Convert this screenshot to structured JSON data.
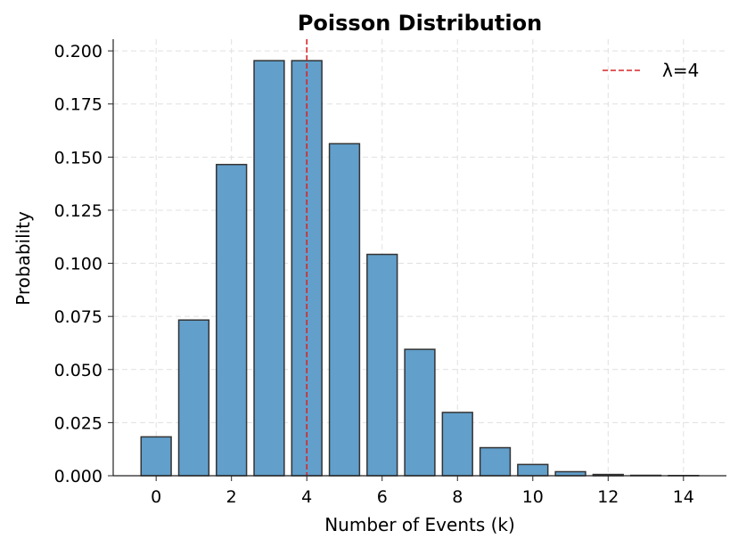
{
  "chart_data": {
    "type": "bar",
    "title": "Poisson Distribution",
    "xlabel": "Number of Events (k)",
    "ylabel": "Probability",
    "x": [
      0,
      1,
      2,
      3,
      4,
      5,
      6,
      7,
      8,
      9,
      10,
      11,
      12,
      13,
      14
    ],
    "values": [
      0.0183,
      0.0733,
      0.1465,
      0.1954,
      0.1954,
      0.1563,
      0.1042,
      0.0595,
      0.0298,
      0.0132,
      0.0053,
      0.0019,
      0.0006,
      0.0002,
      0.0001
    ],
    "xticks": [
      "0",
      "2",
      "4",
      "6",
      "8",
      "10",
      "12",
      "14"
    ],
    "yticks": [
      "0.000",
      "0.025",
      "0.050",
      "0.075",
      "0.100",
      "0.125",
      "0.150",
      "0.175",
      "0.200"
    ],
    "xlim": [
      -1.14,
      15.14
    ],
    "ylim": [
      0,
      0.2055
    ],
    "grid": true,
    "bar_color": "#629fcb",
    "bar_edge_color": "#333333",
    "vline": {
      "x": 4,
      "label": "λ=4",
      "color": "#d62728",
      "style": "dashed"
    },
    "legend": {
      "position": "top-right",
      "entries": [
        "λ=4"
      ]
    }
  }
}
